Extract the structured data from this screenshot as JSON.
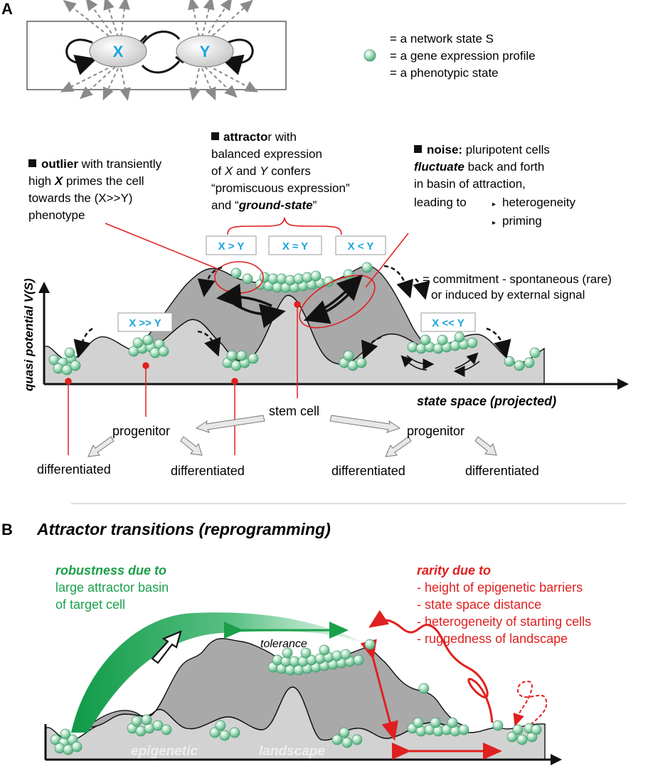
{
  "panel_a": {
    "label": "A",
    "network": {
      "node_x": "X",
      "node_y": "Y"
    },
    "legend": {
      "line1": "= a network state S",
      "line2": "= a gene expression profile",
      "line3": "= a  phenotypic state"
    },
    "outlier": {
      "bold": "outlier",
      "l1_rest": " with transiently",
      "l2_pre": "high ",
      "l2_x": "X",
      "l2_rest": " primes the cell",
      "l3": "towards the (X>>Y)",
      "l4": "phenotype"
    },
    "attractor": {
      "bold": "attracto",
      "l1_rest": "r with",
      "l2": "balanced expression",
      "l3_pre": "of ",
      "l3_x": "X",
      "l3_mid": " and ",
      "l3_y": "Y",
      "l3_rest": " confers",
      "l4": "“promiscuous expression”",
      "l5_pre": "and “",
      "l5_bold": "ground-state",
      "l5_post": "”"
    },
    "noise": {
      "bold": "noise:",
      "l1_rest": " pluripotent cells",
      "l2_bold": "fluctuate",
      "l2_rest": " back and forth",
      "l3": "in basin of attraction,",
      "l4": "leading to",
      "bullet1": "heterogeneity",
      "bullet2": "priming"
    },
    "state_boxes": [
      "X > Y",
      "X ≈ Y",
      "X < Y",
      "X >> Y",
      "X << Y"
    ],
    "commitment": {
      "l1": "= commitment - spontaneous (rare)",
      "l2": "or induced by external signal"
    },
    "y_axis": "quasi potential V(S)",
    "x_axis": "state space (projected)",
    "lineage": {
      "stem": "stem cell",
      "progenitor_left": "progenitor",
      "progenitor_right": "progenitor",
      "diff1": "differentiated",
      "diff2": "differentiated",
      "diff3": "differentiated",
      "diff4": "differentiated"
    }
  },
  "panel_b": {
    "label": "B",
    "title": "Attractor transitions (reprogramming)",
    "robustness": {
      "l1": "robustness due to",
      "l2": "large attractor basin",
      "l3": "of target cell"
    },
    "rarity": {
      "title": "rarity due to",
      "items": [
        "- height of epigenetic barriers",
        "- state space distance",
        "- heterogeneity of starting cells",
        "- ruggedness of landscape"
      ]
    },
    "tolerance": "tolerance",
    "landscape_word1": "epigenetic",
    "landscape_word2": "landscape"
  },
  "colors": {
    "cyan": "#1ba3dc",
    "red": "#e02020",
    "green": "#1aa04a",
    "landscape_dark": "#a9a9a9",
    "landscape_light": "#d2d2d2",
    "ball": "#9ed8b8"
  }
}
